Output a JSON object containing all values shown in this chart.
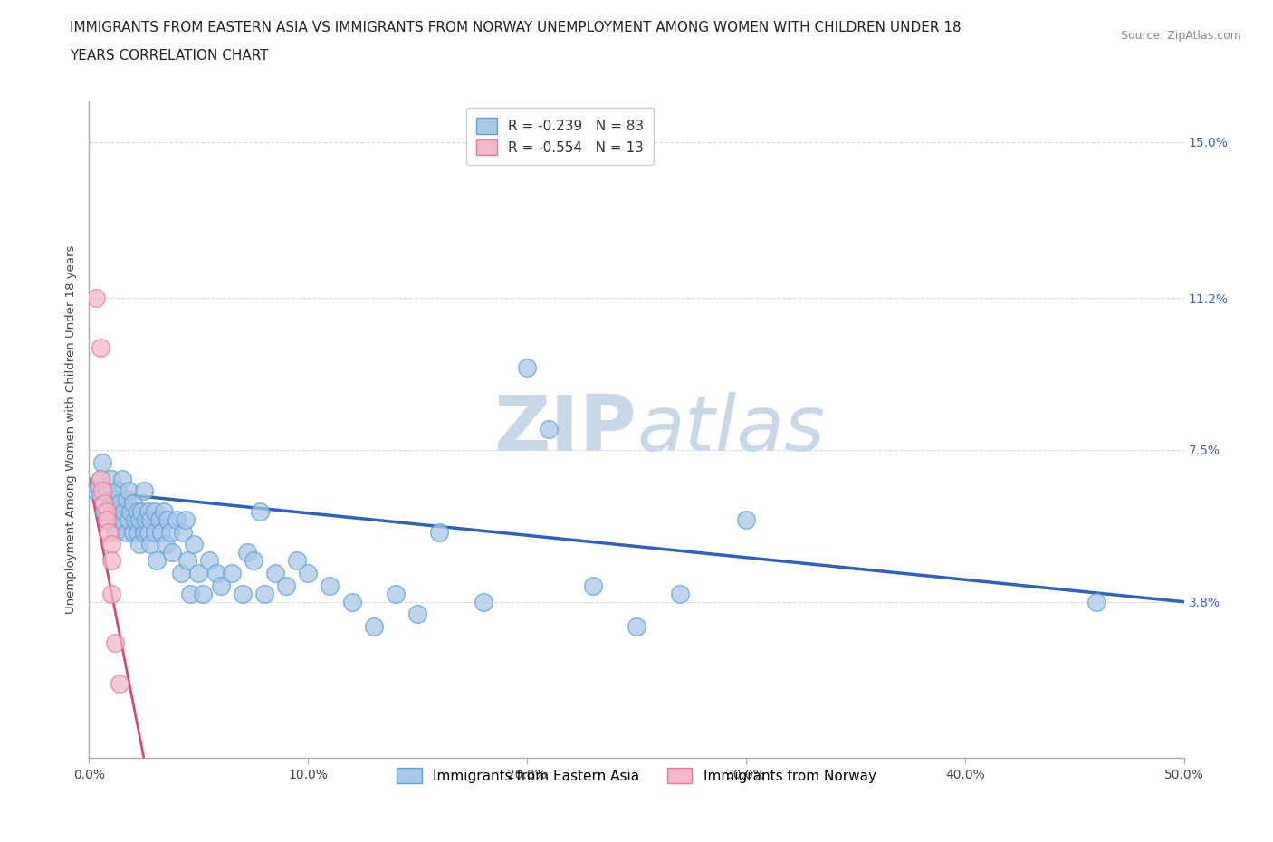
{
  "title_line1": "IMMIGRANTS FROM EASTERN ASIA VS IMMIGRANTS FROM NORWAY UNEMPLOYMENT AMONG WOMEN WITH CHILDREN UNDER 18",
  "title_line2": "YEARS CORRELATION CHART",
  "source_text": "Source: ZipAtlas.com",
  "ylabel": "Unemployment Among Women with Children Under 18 years",
  "xlim": [
    0.0,
    0.5
  ],
  "ylim": [
    0.0,
    0.16
  ],
  "x_ticks": [
    0.0,
    0.1,
    0.2,
    0.3,
    0.4,
    0.5
  ],
  "x_tick_labels": [
    "0.0%",
    "10.0%",
    "20.0%",
    "30.0%",
    "40.0%",
    "50.0%"
  ],
  "y_tick_labels": [
    "3.8%",
    "7.5%",
    "11.2%",
    "15.0%"
  ],
  "y_ticks": [
    0.038,
    0.075,
    0.112,
    0.15
  ],
  "legend1_blue_label": "R = -0.239   N = 83",
  "legend1_pink_label": "R = -0.554   N = 13",
  "legend2_blue_label": "Immigrants from Eastern Asia",
  "legend2_pink_label": "Immigrants from Norway",
  "blue_scatter": [
    [
      0.003,
      0.065
    ],
    [
      0.005,
      0.068
    ],
    [
      0.006,
      0.072
    ],
    [
      0.007,
      0.06
    ],
    [
      0.008,
      0.065
    ],
    [
      0.009,
      0.058
    ],
    [
      0.01,
      0.062
    ],
    [
      0.01,
      0.068
    ],
    [
      0.011,
      0.06
    ],
    [
      0.012,
      0.063
    ],
    [
      0.012,
      0.055
    ],
    [
      0.013,
      0.065
    ],
    [
      0.013,
      0.06
    ],
    [
      0.014,
      0.062
    ],
    [
      0.015,
      0.058
    ],
    [
      0.015,
      0.068
    ],
    [
      0.016,
      0.06
    ],
    [
      0.017,
      0.055
    ],
    [
      0.017,
      0.063
    ],
    [
      0.018,
      0.058
    ],
    [
      0.018,
      0.065
    ],
    [
      0.019,
      0.06
    ],
    [
      0.02,
      0.055
    ],
    [
      0.02,
      0.062
    ],
    [
      0.021,
      0.058
    ],
    [
      0.022,
      0.06
    ],
    [
      0.022,
      0.055
    ],
    [
      0.023,
      0.058
    ],
    [
      0.023,
      0.052
    ],
    [
      0.024,
      0.06
    ],
    [
      0.025,
      0.065
    ],
    [
      0.025,
      0.055
    ],
    [
      0.026,
      0.058
    ],
    [
      0.027,
      0.06
    ],
    [
      0.027,
      0.055
    ],
    [
      0.028,
      0.058
    ],
    [
      0.028,
      0.052
    ],
    [
      0.03,
      0.06
    ],
    [
      0.03,
      0.055
    ],
    [
      0.031,
      0.048
    ],
    [
      0.032,
      0.058
    ],
    [
      0.033,
      0.055
    ],
    [
      0.034,
      0.06
    ],
    [
      0.035,
      0.052
    ],
    [
      0.036,
      0.058
    ],
    [
      0.037,
      0.055
    ],
    [
      0.038,
      0.05
    ],
    [
      0.04,
      0.058
    ],
    [
      0.042,
      0.045
    ],
    [
      0.043,
      0.055
    ],
    [
      0.044,
      0.058
    ],
    [
      0.045,
      0.048
    ],
    [
      0.046,
      0.04
    ],
    [
      0.048,
      0.052
    ],
    [
      0.05,
      0.045
    ],
    [
      0.052,
      0.04
    ],
    [
      0.055,
      0.048
    ],
    [
      0.058,
      0.045
    ],
    [
      0.06,
      0.042
    ],
    [
      0.065,
      0.045
    ],
    [
      0.07,
      0.04
    ],
    [
      0.072,
      0.05
    ],
    [
      0.075,
      0.048
    ],
    [
      0.078,
      0.06
    ],
    [
      0.08,
      0.04
    ],
    [
      0.085,
      0.045
    ],
    [
      0.09,
      0.042
    ],
    [
      0.095,
      0.048
    ],
    [
      0.1,
      0.045
    ],
    [
      0.11,
      0.042
    ],
    [
      0.12,
      0.038
    ],
    [
      0.13,
      0.032
    ],
    [
      0.14,
      0.04
    ],
    [
      0.15,
      0.035
    ],
    [
      0.16,
      0.055
    ],
    [
      0.18,
      0.038
    ],
    [
      0.2,
      0.095
    ],
    [
      0.21,
      0.08
    ],
    [
      0.23,
      0.042
    ],
    [
      0.25,
      0.032
    ],
    [
      0.27,
      0.04
    ],
    [
      0.3,
      0.058
    ],
    [
      0.46,
      0.038
    ]
  ],
  "pink_scatter": [
    [
      0.003,
      0.112
    ],
    [
      0.005,
      0.1
    ],
    [
      0.005,
      0.068
    ],
    [
      0.006,
      0.065
    ],
    [
      0.007,
      0.062
    ],
    [
      0.008,
      0.06
    ],
    [
      0.008,
      0.058
    ],
    [
      0.009,
      0.055
    ],
    [
      0.01,
      0.052
    ],
    [
      0.01,
      0.048
    ],
    [
      0.01,
      0.04
    ],
    [
      0.012,
      0.028
    ],
    [
      0.014,
      0.018
    ]
  ],
  "blue_line_x": [
    0.0,
    0.5
  ],
  "blue_line_y": [
    0.065,
    0.038
  ],
  "pink_line_x": [
    0.0,
    0.025
  ],
  "pink_line_y": [
    0.068,
    0.0
  ],
  "blue_color": "#a8c8e8",
  "blue_edge_color": "#5a9fd4",
  "pink_color": "#f5b8c8",
  "pink_edge_color": "#e87898",
  "blue_line_color": "#3060c0",
  "pink_line_color": "#d84878",
  "grid_color": "#d8d8d8",
  "watermark_color": "#c8d8e8",
  "background_color": "#ffffff",
  "title_fontsize": 11,
  "legend_fontsize": 11,
  "axis_label_fontsize": 9.5,
  "tick_fontsize": 10,
  "right_tick_color": "#4060c0"
}
